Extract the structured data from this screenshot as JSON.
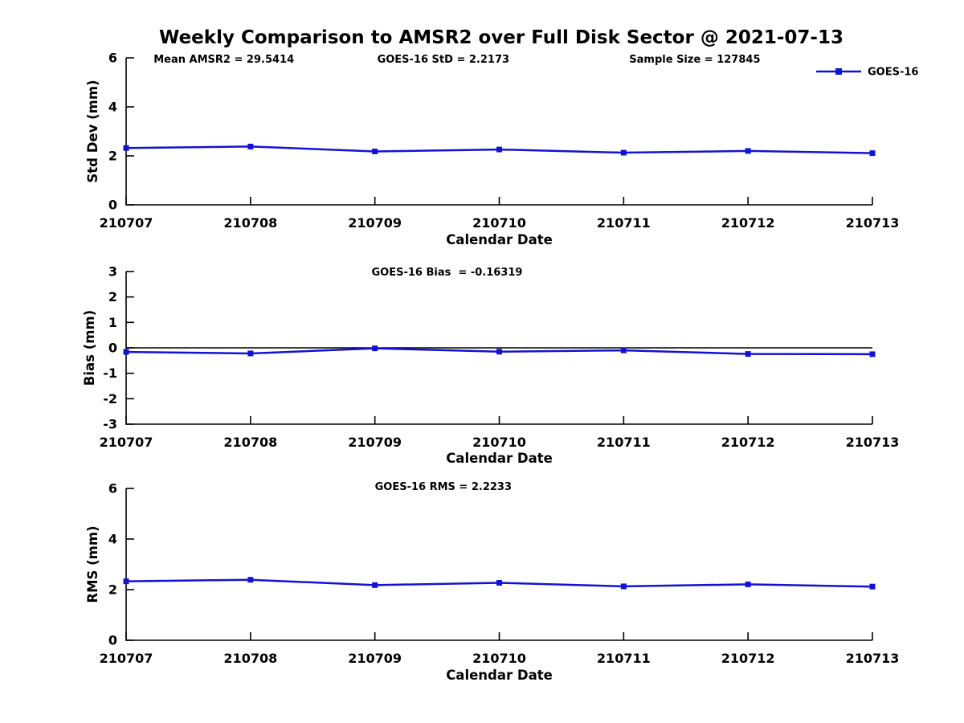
{
  "title": "Weekly Comparison to AMSR2 over Full Disk Sector @ 2021-07-13",
  "legend": {
    "label": "GOES-16"
  },
  "colors": {
    "series_blue": "#1212d6",
    "axis_black": "#000000",
    "background": "#ffffff"
  },
  "chart_data": [
    {
      "type": "line",
      "name": "std-dev",
      "annotations": [
        "Mean AMSR2 = 29.5414",
        "GOES-16 StD = 2.2173",
        "Sample Size = 127845"
      ],
      "categories": [
        "210707",
        "210708",
        "210709",
        "210710",
        "210711",
        "210712",
        "210713"
      ],
      "series": [
        {
          "name": "GOES-16",
          "values": [
            2.32,
            2.38,
            2.18,
            2.26,
            2.13,
            2.2,
            2.11
          ]
        }
      ],
      "xlabel": "Calendar Date",
      "ylabel": "Std Dev (mm)",
      "ylim": [
        0,
        6
      ],
      "yticks": [
        0,
        2,
        4,
        6
      ],
      "grid": false,
      "marker": "square",
      "legend_position": "top-right-outside"
    },
    {
      "type": "line",
      "name": "bias",
      "annotations": [
        "GOES-16 Bias  = -0.16319"
      ],
      "categories": [
        "210707",
        "210708",
        "210709",
        "210710",
        "210711",
        "210712",
        "210713"
      ],
      "series": [
        {
          "name": "GOES-16",
          "values": [
            -0.16,
            -0.22,
            -0.02,
            -0.15,
            -0.1,
            -0.24,
            -0.25
          ]
        }
      ],
      "xlabel": "Calendar Date",
      "ylabel": "Bias (mm)",
      "ylim": [
        -3,
        3
      ],
      "yticks": [
        -3,
        -2,
        -1,
        0,
        1,
        2,
        3
      ],
      "zero_line": true,
      "grid": false,
      "marker": "square"
    },
    {
      "type": "line",
      "name": "rms",
      "annotations": [
        "GOES-16 RMS = 2.2233"
      ],
      "categories": [
        "210707",
        "210708",
        "210709",
        "210710",
        "210711",
        "210712",
        "210713"
      ],
      "series": [
        {
          "name": "GOES-16",
          "values": [
            2.33,
            2.39,
            2.18,
            2.27,
            2.13,
            2.21,
            2.12
          ]
        }
      ],
      "xlabel": "Calendar Date",
      "ylabel": "RMS (mm)",
      "ylim": [
        0,
        6
      ],
      "yticks": [
        0,
        2,
        4,
        6
      ],
      "grid": false,
      "marker": "square"
    }
  ]
}
